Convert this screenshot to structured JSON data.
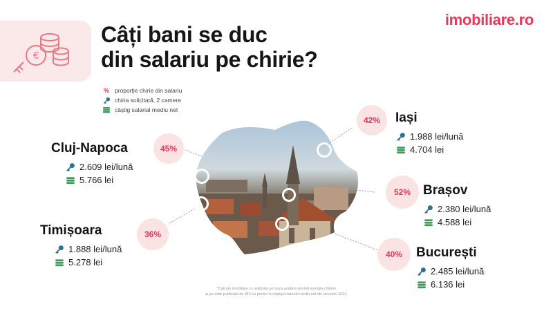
{
  "title": {
    "line1": "Câți bani se duc",
    "line2": "din salariu pe chirie?"
  },
  "brand": "imobiliare.ro",
  "legend": [
    {
      "icon": "percent-icon",
      "text": "proporție chirie din salariu"
    },
    {
      "icon": "key-icon",
      "text": "chiria solicitată, 2 camere"
    },
    {
      "icon": "money-stack-icon",
      "text": "câștig salarial mediu net"
    }
  ],
  "cities": {
    "cluj": {
      "name": "Cluj-Napoca",
      "pct": "45%",
      "rent": "2.609 lei/lună",
      "salary": "5.766 lei"
    },
    "iasi": {
      "name": "Iași",
      "pct": "42%",
      "rent": "1.988 lei/lună",
      "salary": "4.704 lei"
    },
    "brasov": {
      "name": "Brașov",
      "pct": "52%",
      "rent": "2.380 lei/lună",
      "salary": "4.588 lei"
    },
    "timisoara": {
      "name": "Timișoara",
      "pct": "36%",
      "rent": "1.888 lei/lună",
      "salary": "5.278 lei"
    },
    "bucuresti": {
      "name": "București",
      "pct": "40%",
      "rent": "2.485 lei/lună",
      "salary": "6.136 lei"
    }
  },
  "colors": {
    "accent": "#e8385a",
    "badge_bg": "#fbe3e3",
    "tile_bg": "#fbe9e9",
    "key": "#2f6f9b",
    "money": "#3a9a5a"
  },
  "footnote": {
    "line1": "*Calcule imobiliare.ro realizate pe baza analizei privind evoluția chiriilor",
    "line2": "și pe date publicate de INS cu privire la câștigul salarial mediu net din ianuarie 2024."
  }
}
